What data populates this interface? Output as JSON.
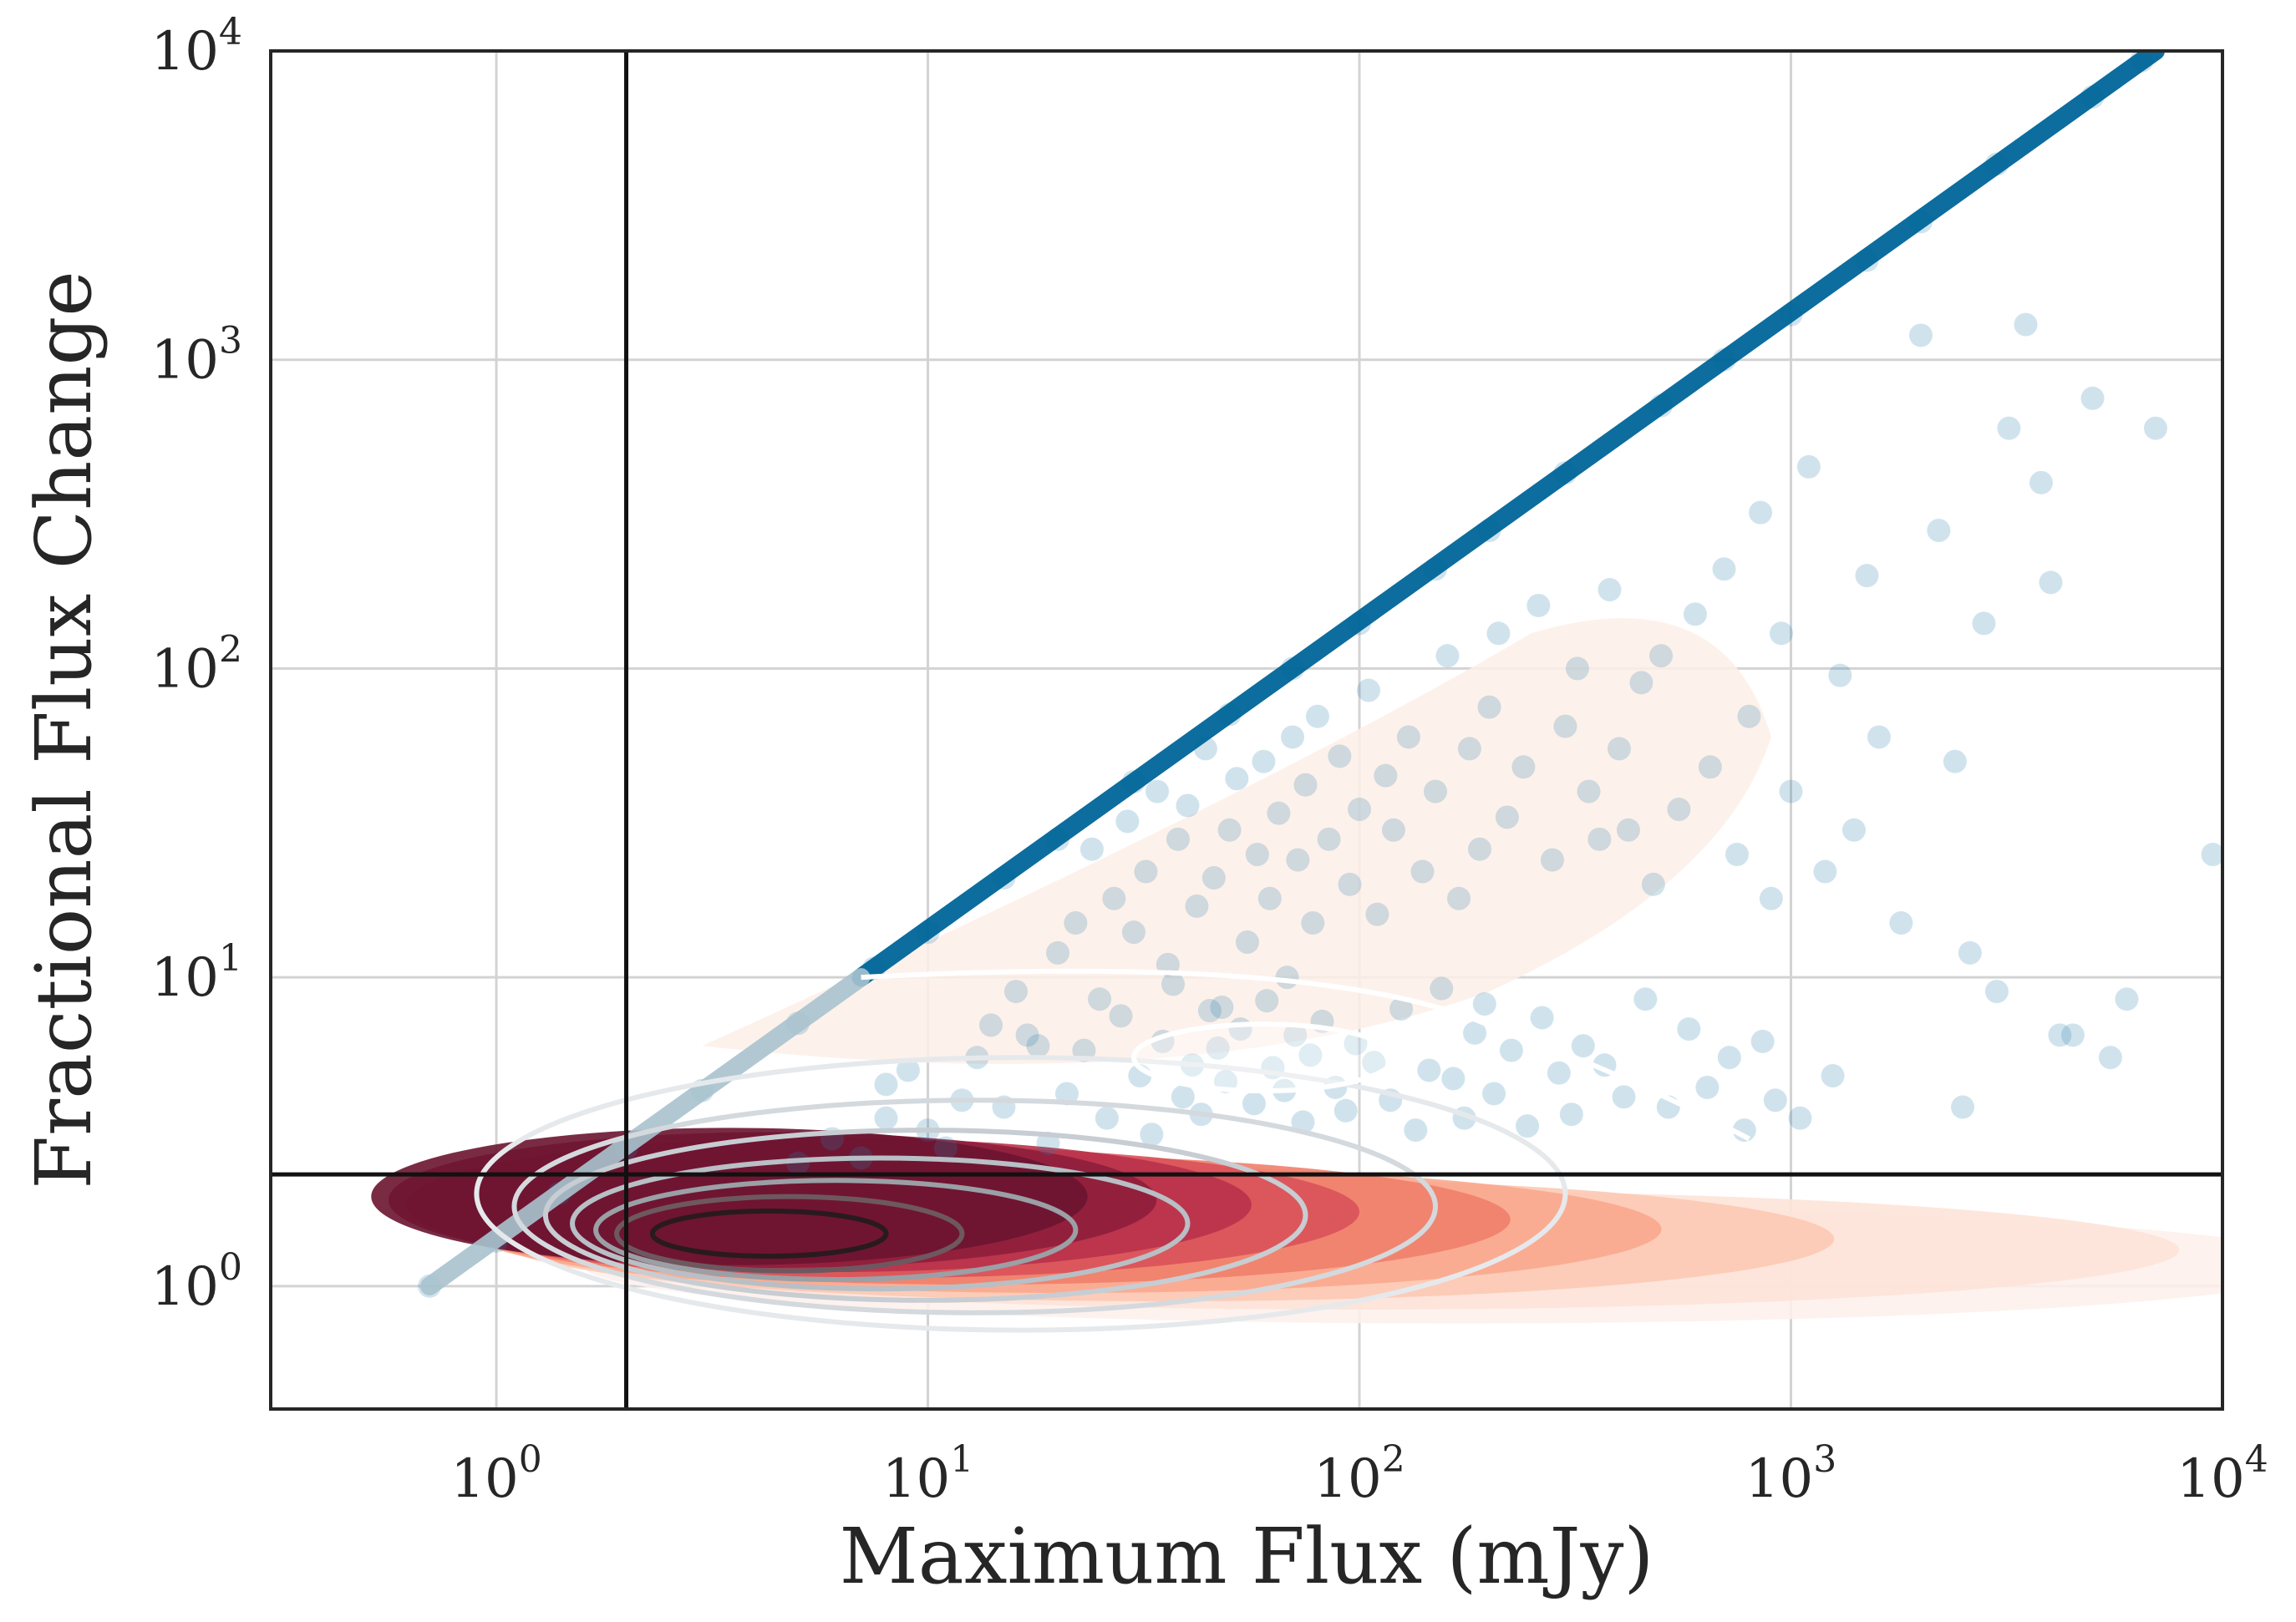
{
  "chart_data": {
    "type": "scatter",
    "title": "",
    "xlabel": "Maximum Flux (mJy)",
    "ylabel": "Fractional Flux Change",
    "xscale": "log",
    "yscale": "log",
    "xlim": [
      0.3,
      10000
    ],
    "ylim": [
      0.4,
      10000
    ],
    "grid": true,
    "x_ticks": [
      {
        "value": 1,
        "base": "10",
        "exp": "0"
      },
      {
        "value": 10,
        "base": "10",
        "exp": "1"
      },
      {
        "value": 100,
        "base": "10",
        "exp": "2"
      },
      {
        "value": 1000,
        "base": "10",
        "exp": "3"
      },
      {
        "value": 10000,
        "base": "10",
        "exp": "4"
      }
    ],
    "y_ticks": [
      {
        "value": 1,
        "base": "10",
        "exp": "0"
      },
      {
        "value": 10,
        "base": "10",
        "exp": "1"
      },
      {
        "value": 100,
        "base": "10",
        "exp": "2"
      },
      {
        "value": 1000,
        "base": "10",
        "exp": "3"
      },
      {
        "value": 10000,
        "base": "10",
        "exp": "4"
      }
    ],
    "reference_lines": {
      "vertical_x": 2.0,
      "horizontal_y": 2.3
    },
    "colors": {
      "scatter": "#2a7fae",
      "diagonal": "#006699",
      "density_light": "#fde5dc",
      "density_dark": "#6b1430",
      "contour_lines": "#bfc6cc",
      "reference_line": "#111111"
    },
    "series": [
      {
        "points": [
          [
            0.7,
            1.0
          ],
          [
            1.0,
            1.4
          ],
          [
            1.4,
            2.0
          ],
          [
            2.0,
            2.8
          ],
          [
            3.0,
            4.3
          ],
          [
            5.0,
            7.1
          ],
          [
            7.5,
            10.7
          ],
          [
            10,
            14
          ],
          [
            15,
            21
          ],
          [
            20,
            28
          ],
          [
            30,
            43
          ],
          [
            50,
            71
          ],
          [
            70,
            100
          ],
          [
            100,
            140
          ],
          [
            150,
            210
          ],
          [
            200,
            280
          ],
          [
            300,
            430
          ],
          [
            500,
            710
          ],
          [
            700,
            1000
          ],
          [
            1000,
            1400
          ],
          [
            1500,
            2100
          ],
          [
            2000,
            2800
          ],
          [
            3000,
            4300
          ],
          [
            5000,
            7100
          ],
          [
            6500,
            9300
          ],
          [
            8,
            3.5
          ],
          [
            9,
            5.0
          ],
          [
            12,
            4.0
          ],
          [
            14,
            7.0
          ],
          [
            16,
            9.0
          ],
          [
            18,
            6.0
          ],
          [
            20,
            12
          ],
          [
            22,
            15
          ],
          [
            24,
            26
          ],
          [
            25,
            8.5
          ],
          [
            27,
            18
          ],
          [
            29,
            32
          ],
          [
            30,
            14
          ],
          [
            32,
            22
          ],
          [
            34,
            40
          ],
          [
            36,
            11
          ],
          [
            38,
            28
          ],
          [
            40,
            36
          ],
          [
            42,
            17
          ],
          [
            44,
            55
          ],
          [
            46,
            21
          ],
          [
            48,
            8.0
          ],
          [
            50,
            30
          ],
          [
            52,
            44
          ],
          [
            55,
            13
          ],
          [
            58,
            25
          ],
          [
            60,
            50
          ],
          [
            62,
            18
          ],
          [
            65,
            34
          ],
          [
            68,
            10
          ],
          [
            70,
            60
          ],
          [
            72,
            24
          ],
          [
            75,
            42
          ],
          [
            78,
            15
          ],
          [
            80,
            70
          ],
          [
            85,
            28
          ],
          [
            90,
            52
          ],
          [
            95,
            20
          ],
          [
            100,
            35
          ],
          [
            105,
            85
          ],
          [
            110,
            16
          ],
          [
            115,
            45
          ],
          [
            120,
            30
          ],
          [
            130,
            60
          ],
          [
            140,
            22
          ],
          [
            150,
            40
          ],
          [
            160,
            110
          ],
          [
            170,
            18
          ],
          [
            180,
            55
          ],
          [
            190,
            26
          ],
          [
            200,
            75
          ],
          [
            210,
            130
          ],
          [
            220,
            33
          ],
          [
            240,
            48
          ],
          [
            260,
            160
          ],
          [
            280,
            24
          ],
          [
            300,
            65
          ],
          [
            320,
            100
          ],
          [
            340,
            40
          ],
          [
            360,
            28
          ],
          [
            380,
            180
          ],
          [
            400,
            55
          ],
          [
            420,
            30
          ],
          [
            450,
            90
          ],
          [
            480,
            20
          ],
          [
            500,
            110
          ],
          [
            550,
            35
          ],
          [
            600,
            150
          ],
          [
            650,
            48
          ],
          [
            700,
            210
          ],
          [
            750,
            25
          ],
          [
            800,
            70
          ],
          [
            850,
            320
          ],
          [
            900,
            18
          ],
          [
            950,
            130
          ],
          [
            1000,
            40
          ],
          [
            1100,
            450
          ],
          [
            1200,
            22
          ],
          [
            1300,
            95
          ],
          [
            1400,
            30
          ],
          [
            1500,
            200
          ],
          [
            1600,
            60
          ],
          [
            1800,
            15
          ],
          [
            2000,
            1200
          ],
          [
            2200,
            280
          ],
          [
            2400,
            50
          ],
          [
            2600,
            12
          ],
          [
            2800,
            140
          ],
          [
            3000,
            9
          ],
          [
            3200,
            600
          ],
          [
            3500,
            1300
          ],
          [
            3800,
            400
          ],
          [
            4000,
            190
          ],
          [
            4500,
            6.5
          ],
          [
            5000,
            750
          ],
          [
            5500,
            5.5
          ],
          [
            6000,
            8.5
          ],
          [
            7000,
            600
          ],
          [
            9500,
            25
          ],
          [
            5,
            2.5
          ],
          [
            6,
            3.0
          ],
          [
            7,
            2.6
          ],
          [
            8,
            4.5
          ],
          [
            10,
            3.2
          ],
          [
            11,
            2.8
          ],
          [
            13,
            5.5
          ],
          [
            15,
            3.8
          ],
          [
            17,
            6.5
          ],
          [
            19,
            2.9
          ],
          [
            21,
            4.2
          ],
          [
            23,
            5.8
          ],
          [
            26,
            3.5
          ],
          [
            28,
            7.5
          ],
          [
            31,
            4.8
          ],
          [
            33,
            3.1
          ],
          [
            35,
            6.2
          ],
          [
            37,
            9.5
          ],
          [
            39,
            4.1
          ],
          [
            41,
            5.2
          ],
          [
            43,
            3.6
          ],
          [
            45,
            7.8
          ],
          [
            47,
            5.9
          ],
          [
            49,
            4.6
          ],
          [
            53,
            6.8
          ],
          [
            57,
            3.9
          ],
          [
            61,
            8.4
          ],
          [
            63,
            5.1
          ],
          [
            67,
            4.3
          ],
          [
            71,
            6.5
          ],
          [
            74,
            3.4
          ],
          [
            77,
            5.6
          ],
          [
            82,
            7.2
          ],
          [
            88,
            4.4
          ],
          [
            93,
            3.7
          ],
          [
            98,
            6.1
          ],
          [
            108,
            5.3
          ],
          [
            118,
            4.0
          ],
          [
            125,
            7.9
          ],
          [
            135,
            3.2
          ],
          [
            145,
            5.0
          ],
          [
            155,
            9.2
          ],
          [
            165,
            4.7
          ],
          [
            175,
            3.5
          ],
          [
            185,
            6.6
          ],
          [
            195,
            8.2
          ],
          [
            205,
            4.2
          ],
          [
            225,
            5.8
          ],
          [
            245,
            3.3
          ],
          [
            265,
            7.4
          ],
          [
            290,
            4.9
          ],
          [
            310,
            3.6
          ],
          [
            330,
            6.0
          ],
          [
            370,
            5.2
          ],
          [
            410,
            4.1
          ],
          [
            460,
            8.5
          ],
          [
            520,
            3.8
          ],
          [
            580,
            6.8
          ],
          [
            640,
            4.4
          ],
          [
            720,
            5.5
          ],
          [
            780,
            3.2
          ],
          [
            860,
            6.2
          ],
          [
            920,
            4.0
          ],
          [
            1050,
            3.5
          ],
          [
            1250,
            4.8
          ],
          [
            2500,
            3.8
          ],
          [
            4200,
            6.5
          ]
        ]
      }
    ]
  }
}
